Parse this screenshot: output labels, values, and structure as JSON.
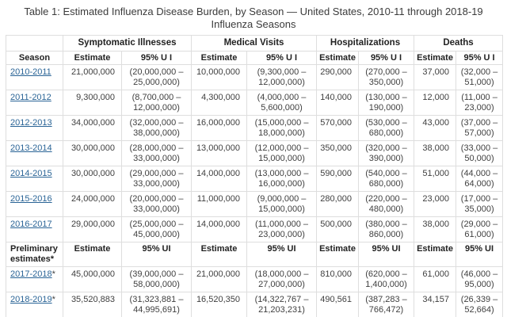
{
  "title": "Table 1: Estimated Influenza Disease Burden, by Season — United States, 2010-11 through 2018-19 Influenza Seasons",
  "colors": {
    "link_blue": "#2a6496",
    "border_gray": "#dedede",
    "header_text": "#222222",
    "body_text": "#3f3f3f"
  },
  "table": {
    "group_headers": [
      "",
      "Symptomatic Illnesses",
      "Medical Visits",
      "Hospitalizations",
      "Deaths"
    ],
    "sub_headers": [
      "Season",
      "Estimate",
      "95% U I",
      "Estimate",
      "95% U I",
      "Estimate",
      "95% U I",
      "Estimate",
      "95% U I"
    ],
    "rows": [
      {
        "season": "2010-2011",
        "suffix": "",
        "cells": [
          "21,000,000",
          "(20,000,000 – 25,000,000)",
          "10,000,000",
          "(9,300,000 – 12,000,000)",
          "290,000",
          "(270,000 – 350,000)",
          "37,000",
          "(32,000 – 51,000)"
        ]
      },
      {
        "season": "2011-2012",
        "suffix": "",
        "cells": [
          "9,300,000",
          "(8,700,000 – 12,000,000)",
          "4,300,000",
          "(4,000,000 – 5,600,000)",
          "140,000",
          "(130,000 – 190,000)",
          "12,000",
          "(11,000 – 23,000)"
        ]
      },
      {
        "season": "2012-2013",
        "suffix": "",
        "cells": [
          "34,000,000",
          "(32,000,000 – 38,000,000)",
          "16,000,000",
          "(15,000,000 – 18,000,000)",
          "570,000",
          "(530,000 – 680,000)",
          "43,000",
          "(37,000 – 57,000)"
        ]
      },
      {
        "season": "2013-2014",
        "suffix": "",
        "cells": [
          "30,000,000",
          "(28,000,000 – 33,000,000)",
          "13,000,000",
          "(12,000,000 – 15,000,000)",
          "350,000",
          "(320,000 – 390,000)",
          "38,000",
          "(33,000 – 50,000)"
        ]
      },
      {
        "season": "2014-2015",
        "suffix": "",
        "cells": [
          "30,000,000",
          "(29,000,000 – 33,000,000)",
          "14,000,000",
          "(13,000,000 – 16,000,000)",
          "590,000",
          "(540,000 – 680,000)",
          "51,000",
          "(44,000 – 64,000)"
        ]
      },
      {
        "season": "2015-2016",
        "suffix": "",
        "cells": [
          "24,000,000",
          "(20,000,000 – 33,000,000)",
          "11,000,000",
          "(9,000,000 – 15,000,000)",
          "280,000",
          "(220,000 – 480,000)",
          "23,000",
          "(17,000 – 35,000)"
        ]
      },
      {
        "season": "2016-2017",
        "suffix": "",
        "cells": [
          "29,000,000",
          "(25,000,000 – 45,000,000)",
          "14,000,000",
          "(11,000,000 – 23,000,000)",
          "500,000",
          "(380,000 – 860,000)",
          "38,000",
          "(29,000 – 61,000)"
        ]
      }
    ],
    "preliminary": {
      "label": "Preliminary estimates*",
      "headers": [
        "Estimate",
        "95% UI",
        "Estimate",
        "95% UI",
        "Estimate",
        "95% UI",
        "Estimate",
        "95% UI"
      ],
      "rows": [
        {
          "season": "2017-2018",
          "suffix": "*",
          "cells": [
            "45,000,000",
            "(39,000,000 – 58,000,000)",
            "21,000,000",
            "(18,000,000 – 27,000,000)",
            "810,000",
            "(620,000 – 1,400,000)",
            "61,000",
            "(46,000 – 95,000)"
          ]
        },
        {
          "season": "2018-2019",
          "suffix": "*",
          "cells": [
            "35,520,883",
            "(31,323,881 – 44,995,691)",
            "16,520,350",
            "(14,322,767 – 21,203,231)",
            "490,561",
            "(387,283 – 766,472)",
            "34,157",
            "(26,339 – 52,664)"
          ]
        }
      ]
    }
  }
}
